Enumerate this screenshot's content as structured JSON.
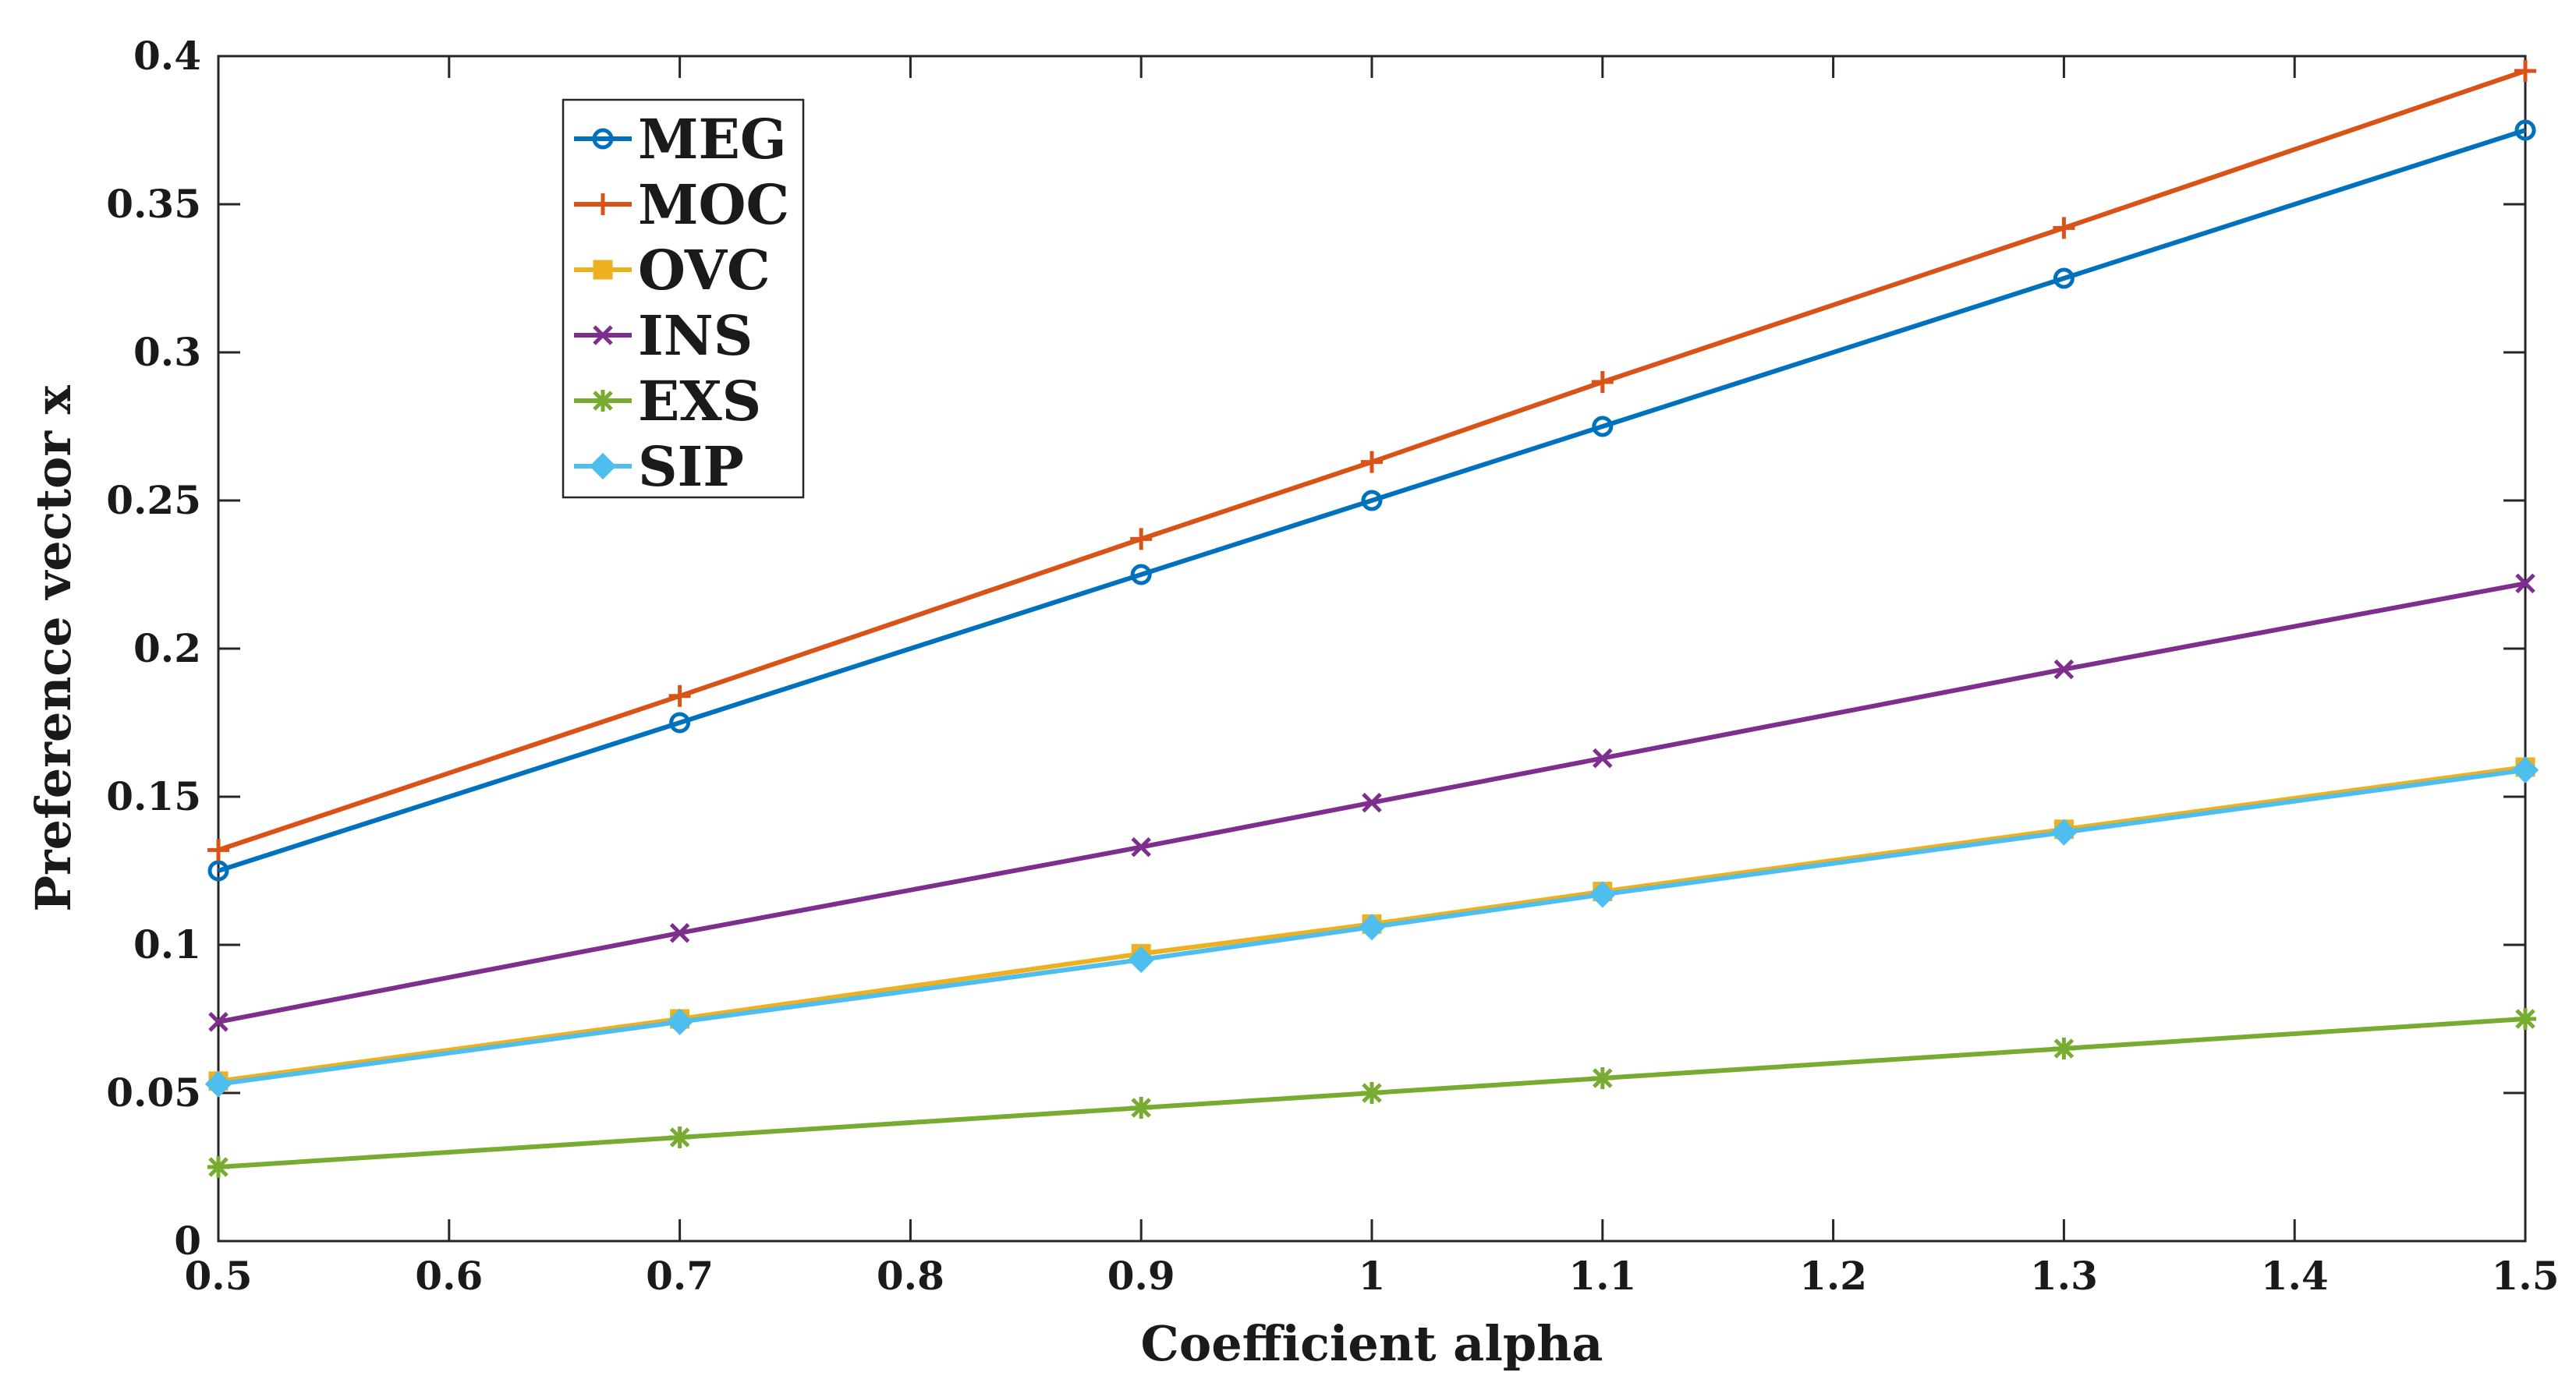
{
  "chart_data": {
    "type": "line",
    "title": "",
    "xlabel": "Coefficient alpha",
    "ylabel": "Preference vector x",
    "xlim": [
      0.5,
      1.5
    ],
    "ylim": [
      0,
      0.4
    ],
    "grid": false,
    "legend_position": "top-left",
    "x_ticks": [
      0.5,
      0.6,
      0.7,
      0.8,
      0.9,
      1.0,
      1.1,
      1.2,
      1.3,
      1.4,
      1.5
    ],
    "x_tick_labels": [
      "0.5",
      "0.6",
      "0.7",
      "0.8",
      "0.9",
      "1",
      "1.1",
      "1.2",
      "1.3",
      "1.4",
      "1.5"
    ],
    "y_ticks": [
      0,
      0.05,
      0.1,
      0.15,
      0.2,
      0.25,
      0.3,
      0.35,
      0.4
    ],
    "y_tick_labels": [
      "0",
      "0.05",
      "0.1",
      "0.15",
      "0.2",
      "0.25",
      "0.3",
      "0.35",
      "0.4"
    ],
    "x": [
      0.5,
      0.7,
      0.9,
      1.0,
      1.1,
      1.3,
      1.5
    ],
    "series": [
      {
        "name": "MEG",
        "color": "#0072BD",
        "marker": "circle",
        "values": [
          0.125,
          0.175,
          0.225,
          0.25,
          0.275,
          0.325,
          0.375
        ]
      },
      {
        "name": "MOC",
        "color": "#D95319",
        "marker": "plus",
        "values": [
          0.132,
          0.184,
          0.237,
          0.263,
          0.29,
          0.342,
          0.395
        ]
      },
      {
        "name": "OVC",
        "color": "#EDB120",
        "marker": "square",
        "values": [
          0.054,
          0.075,
          0.097,
          0.107,
          0.118,
          0.139,
          0.16
        ]
      },
      {
        "name": "INS",
        "color": "#7E2F8E",
        "marker": "x",
        "values": [
          0.074,
          0.104,
          0.133,
          0.148,
          0.163,
          0.193,
          0.222
        ]
      },
      {
        "name": "EXS",
        "color": "#77AC30",
        "marker": "star",
        "values": [
          0.025,
          0.035,
          0.045,
          0.05,
          0.055,
          0.065,
          0.075
        ]
      },
      {
        "name": "SIP",
        "color": "#4DBEEE",
        "marker": "diamond",
        "values": [
          0.053,
          0.074,
          0.095,
          0.106,
          0.117,
          0.138,
          0.159
        ]
      }
    ]
  }
}
